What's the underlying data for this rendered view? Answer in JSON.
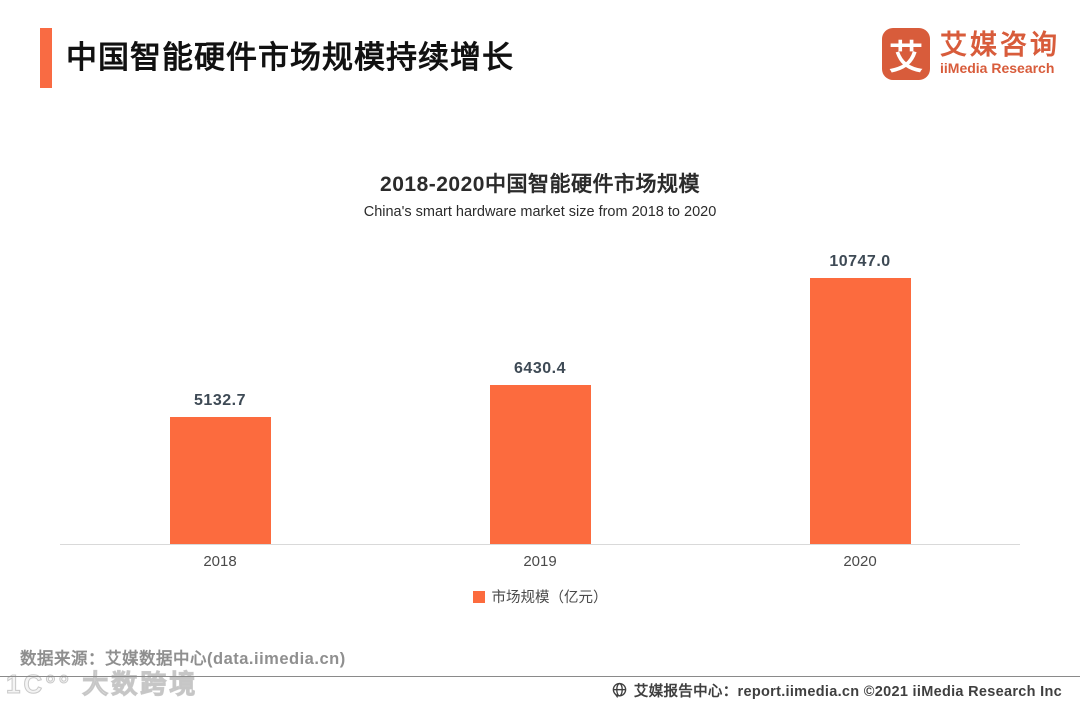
{
  "colors": {
    "accent_orange": "#F96B43",
    "bar_orange": "#FC6B3E",
    "logo_orange": "#D85C3B",
    "value_label": "#3e4a55",
    "axis_line": "#d9d9d9"
  },
  "header": {
    "title": "中国智能硬件市场规模持续增长",
    "logo": {
      "mark_glyph": "艾",
      "name_cn": "艾媒咨询",
      "name_en": "iiMedia Research"
    }
  },
  "chart_data": {
    "type": "bar",
    "title": "2018-2020中国智能硬件市场规模",
    "subtitle": "China's smart hardware market size from 2018 to 2020",
    "categories": [
      "2018",
      "2019",
      "2020"
    ],
    "values": [
      5132.7,
      6430.4,
      10747.0
    ],
    "value_labels": [
      "5132.7",
      "6430.4",
      "10747.0"
    ],
    "series_name": "市场规模（亿元）",
    "unit": "亿元",
    "ylim": [
      0,
      12120
    ],
    "grid": false,
    "legend_position": "bottom",
    "bar_color": "#FC6B3E"
  },
  "footer": {
    "source": "数据来源：艾媒数据中心(data.iimedia.cn)",
    "watermark": "1C°° 大数跨境",
    "report_center": "艾媒报告中心：report.iimedia.cn ©2021  iiMedia Research Inc"
  }
}
